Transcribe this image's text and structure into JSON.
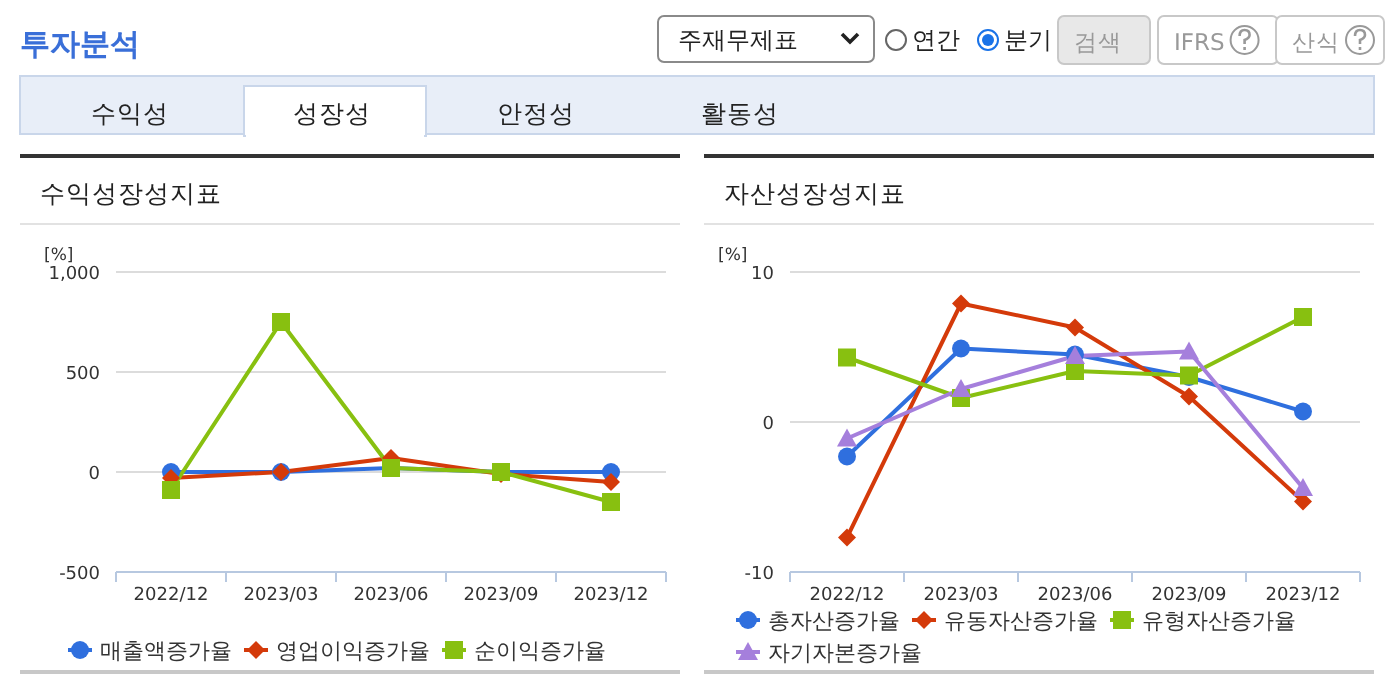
{
  "chart_data": [
    {
      "type": "other",
      "annotations": [
        "투자분석",
        "주재무제표",
        "연간",
        "분기",
        "검색",
        "IFRS",
        "산식",
        "수익성",
        "성장성",
        "안정성",
        "활동성"
      ]
    },
    {
      "type": "line",
      "title": "수익성장성지표",
      "ylabel": "[%]",
      "categories": [
        "2022/12",
        "2023/03",
        "2023/06",
        "2023/09",
        "2023/12"
      ],
      "ylim": [
        -500,
        1000
      ],
      "yticks": [
        -500,
        0,
        500,
        {
          "value": 1000,
          "label": "1,000"
        }
      ],
      "grid": "y",
      "legend": "bottom",
      "series": [
        {
          "name": "매출액증가율",
          "color": "#2f6fde",
          "marker": "circle",
          "values": [
            0,
            0,
            20,
            0,
            0
          ]
        },
        {
          "name": "영업이익증가율",
          "color": "#d43a0a",
          "marker": "diamond",
          "values": [
            -30,
            0,
            70,
            -10,
            -50
          ]
        },
        {
          "name": "순이익증가율",
          "color": "#88c010",
          "marker": "square",
          "values": [
            -90,
            750,
            20,
            0,
            -150
          ]
        }
      ]
    },
    {
      "type": "line",
      "title": "자산성장성지표",
      "ylabel": "[%]",
      "categories": [
        "2022/12",
        "2023/03",
        "2023/06",
        "2023/09",
        "2023/12"
      ],
      "ylim": [
        -10,
        10
      ],
      "yticks": [
        -10,
        0,
        10
      ],
      "grid": "y",
      "legend": "bottom",
      "series": [
        {
          "name": "총자산증가율",
          "color": "#2f6fde",
          "marker": "circle",
          "values": [
            -2.3,
            4.9,
            4.5,
            3.0,
            0.7
          ]
        },
        {
          "name": "유동자산증가율",
          "color": "#d43a0a",
          "marker": "diamond",
          "values": [
            -7.7,
            7.9,
            6.3,
            1.7,
            -5.3
          ]
        },
        {
          "name": "유형자산증가율",
          "color": "#88c010",
          "marker": "square",
          "values": [
            4.3,
            1.6,
            3.4,
            3.1,
            7.0
          ]
        },
        {
          "name": "자기자본증가율",
          "color": "#a57fdc",
          "marker": "triangle",
          "values": [
            -1.1,
            2.2,
            4.4,
            4.7,
            -4.4
          ]
        }
      ]
    }
  ]
}
